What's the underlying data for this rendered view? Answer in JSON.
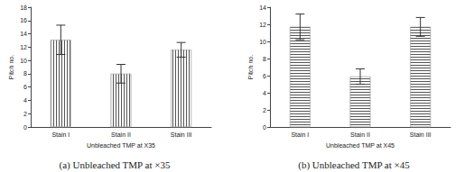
{
  "chart_data": [
    {
      "type": "bar",
      "title": "(a) Unbleached TMP at ×35",
      "x_label": "Unbleached TMP at X35",
      "y_label": "Pitch no.",
      "categories": [
        "Stain I",
        "Stain II",
        "Stain III"
      ],
      "values": [
        13.1,
        8.0,
        11.6
      ],
      "errors": [
        2.2,
        1.4,
        1.1
      ],
      "color": "#555555",
      "ylim": [
        0,
        18
      ],
      "yticks": [
        0,
        2,
        4,
        6,
        8,
        10,
        12,
        14,
        16,
        18
      ],
      "grid": false
    },
    {
      "type": "bar",
      "title": "(b) Unbleached TMP at ×45",
      "x_label": "Unbleached TMP at X45",
      "y_label": "Pitch no.",
      "categories": [
        "Stain I",
        "Stain II",
        "Stain III"
      ],
      "values": [
        11.7,
        5.9,
        11.7
      ],
      "errors": [
        1.5,
        0.9,
        1.1
      ],
      "color": "#555555",
      "ylim": [
        0,
        14
      ],
      "yticks": [
        0,
        2,
        4,
        6,
        8,
        10,
        12,
        14
      ],
      "grid": false
    }
  ]
}
